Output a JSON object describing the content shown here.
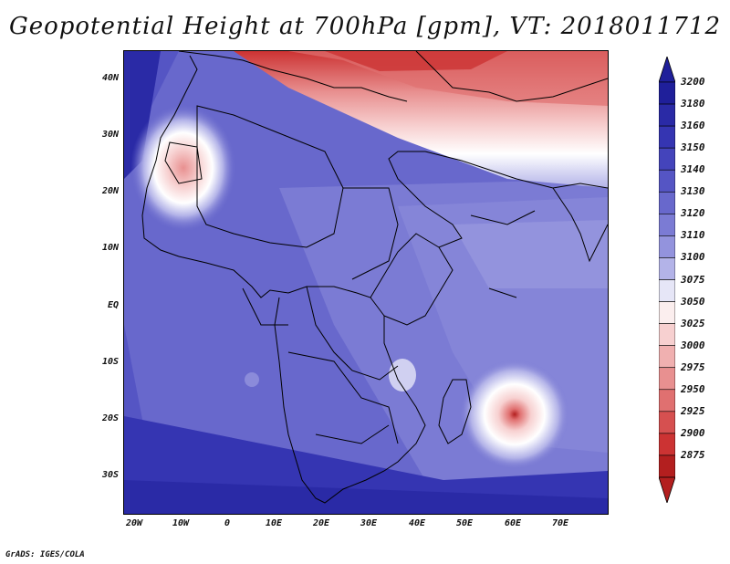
{
  "title": "Geopotential Height at 700hPa [gpm], VT: 2018011712",
  "credit": "GrADS: IGES/COLA",
  "lat_labels": [
    "40N",
    "30N",
    "20N",
    "10N",
    "EQ",
    "10S",
    "20S",
    "30S"
  ],
  "lon_labels": [
    "20W",
    "10W",
    "0",
    "10E",
    "20E",
    "30E",
    "40E",
    "50E",
    "60E",
    "70E"
  ],
  "legend": {
    "levels": [
      "3200",
      "3180",
      "3160",
      "3150",
      "3140",
      "3130",
      "3120",
      "3110",
      "3100",
      "3075",
      "3050",
      "3025",
      "3000",
      "2975",
      "2950",
      "2925",
      "2900",
      "2875"
    ],
    "colors": [
      "#1f1f9a",
      "#2a2aa6",
      "#3535b2",
      "#4444bb",
      "#5555c4",
      "#6868cc",
      "#7b7bd4",
      "#9393dd",
      "#b3b3e8",
      "#e6e6f7",
      "#fbeeee",
      "#f7d0d0",
      "#f0b0b0",
      "#e89090",
      "#e07070",
      "#d65050",
      "#cc3333",
      "#b31f1f"
    ]
  },
  "features": {
    "high_pressure_north": "north-red-region",
    "low_west_africa": "west-africa-low",
    "cyclone_indian_ocean": "indian-ocean-low"
  }
}
